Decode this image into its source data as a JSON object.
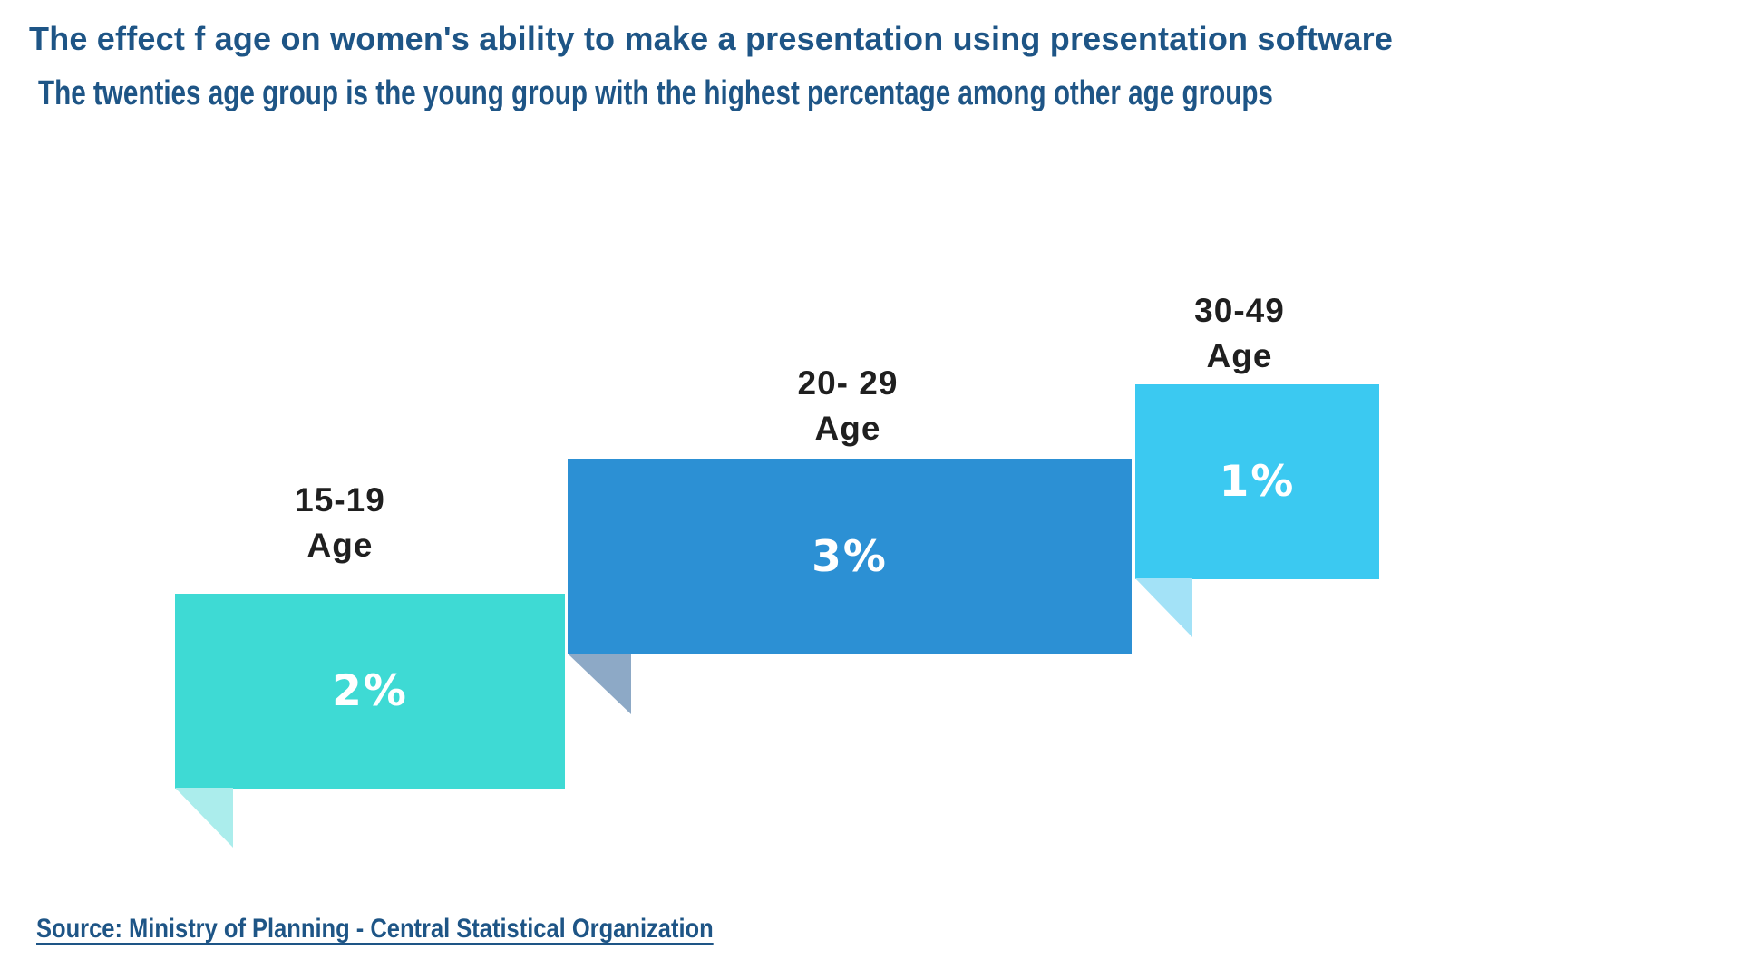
{
  "colors": {
    "heading_blue": "#1E5586",
    "label_black": "#1F1F1F",
    "value_white": "#FFFFFF",
    "background": "#FFFFFF"
  },
  "chart_data": {
    "type": "bar",
    "variant": "stepped-speech-bubble-infographic",
    "title": "The effect f age on women's ability to make a presentation using presentation software",
    "subtitle": "The twenties age group is the young group with the highest percentage among other age groups",
    "source": "Source: Ministry of Planning - Central Statistical Organization",
    "categories": [
      "15-19 Age",
      "20- 29 Age",
      "30-49 Age"
    ],
    "values": [
      2,
      3,
      1
    ],
    "unit": "%",
    "legend": false,
    "axes": false,
    "grid": false,
    "bars": [
      {
        "label_line1": "15-19",
        "label_line2": "Age",
        "value": 2,
        "value_label": "2%",
        "color": "#3EDAD4",
        "tail_color": "#ABEDEC"
      },
      {
        "label_line1": "20- 29",
        "label_line2": "Age",
        "value": 3,
        "value_label": "3%",
        "color": "#2C90D4",
        "tail_color": "#8DA9C6"
      },
      {
        "label_line1": "30-49",
        "label_line2": "Age",
        "value": 1,
        "value_label": "1%",
        "color": "#3BC9F1",
        "tail_color": "#A3E2F7"
      }
    ]
  }
}
